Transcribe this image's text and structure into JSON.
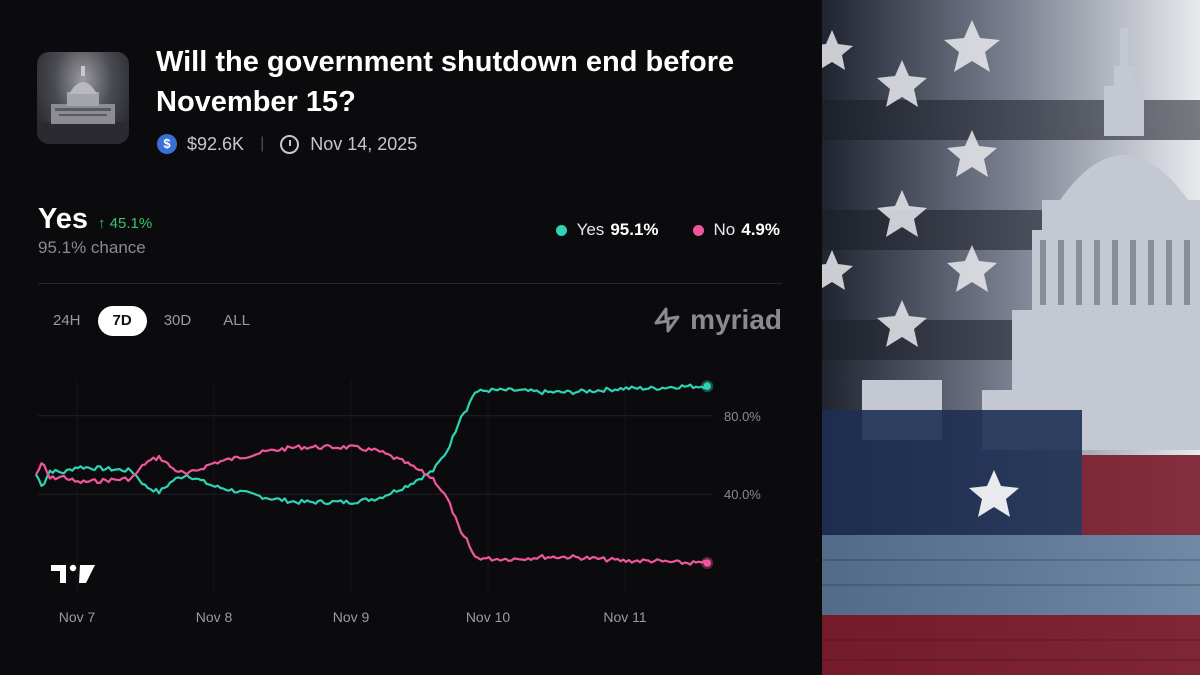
{
  "market": {
    "title": "Will the government shutdown end before November 15?",
    "volume": "$92.6K",
    "end_date": "Nov 14, 2025"
  },
  "summary": {
    "outcome": "Yes",
    "change": "↑ 45.1%",
    "chance": "95.1% chance"
  },
  "legend": [
    {
      "label": "Yes",
      "value": "95.1%",
      "color": "#2ed3b4"
    },
    {
      "label": "No",
      "value": "4.9%",
      "color": "#f0569c"
    }
  ],
  "ranges": [
    "24H",
    "7D",
    "30D",
    "ALL"
  ],
  "active_range": "7D",
  "brand": "myriad",
  "chart_data": {
    "type": "line",
    "x_ticks": [
      "Nov 7",
      "Nov 8",
      "Nov 9",
      "Nov 10",
      "Nov 11"
    ],
    "y_ticks": [
      "80.0%",
      "40.0%"
    ],
    "ylim": [
      0,
      100
    ],
    "grid": true,
    "x": [
      6.7,
      6.75,
      6.8,
      6.9,
      7.0,
      7.2,
      7.4,
      7.5,
      7.6,
      7.7,
      7.8,
      8.0,
      8.2,
      8.4,
      8.6,
      8.8,
      9.0,
      9.2,
      9.4,
      9.6,
      9.7,
      9.75,
      9.8,
      9.85,
      9.9,
      10.0,
      10.2,
      10.4,
      10.6,
      10.8,
      11.0,
      11.2,
      11.4,
      11.6
    ],
    "series": [
      {
        "name": "Yes",
        "color": "#2ed3b4",
        "values": [
          50,
          44,
          52,
          51,
          54,
          53,
          52,
          44,
          41,
          47,
          50,
          44,
          41,
          38,
          36,
          36,
          36,
          38,
          44,
          52,
          62,
          70,
          80,
          84,
          92,
          93,
          93,
          92,
          92,
          93,
          94,
          94,
          95,
          95.1
        ]
      },
      {
        "name": "No",
        "color": "#f0569c",
        "values": [
          50,
          56,
          48,
          49,
          46,
          47,
          48,
          56,
          59,
          53,
          50,
          56,
          59,
          62,
          64,
          64,
          64,
          62,
          56,
          48,
          38,
          30,
          20,
          16,
          8,
          7,
          7,
          8,
          8,
          7,
          6,
          6,
          5,
          4.9
        ]
      }
    ]
  }
}
